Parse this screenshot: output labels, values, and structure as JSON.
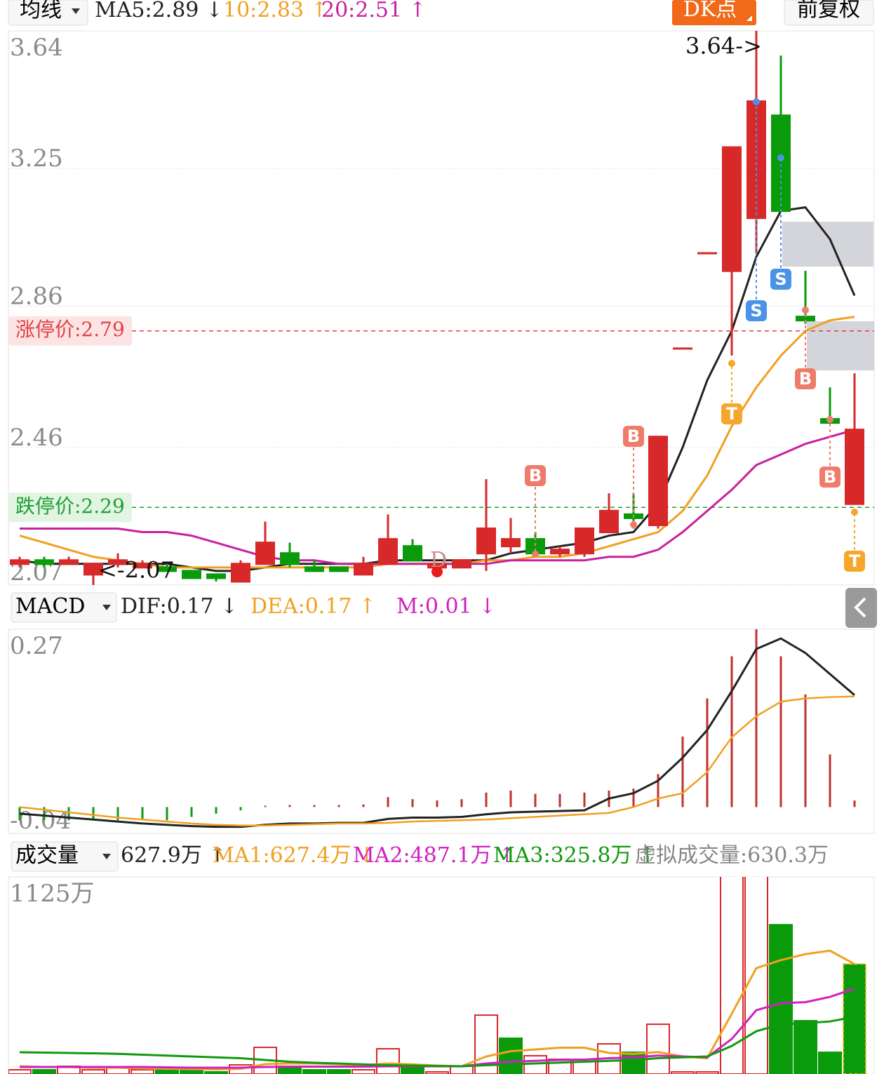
{
  "chart_data": [
    {
      "type": "candlestick",
      "title": "均线",
      "legend": [
        "MA5:2.89 ↓",
        "10:2.83 ↑",
        "20:2.51 ↑"
      ],
      "buttons": [
        "DK点",
        "前复权"
      ],
      "open": [
        2.13,
        2.14,
        2.13,
        2.1,
        2.13,
        2.12,
        2.12,
        2.11,
        2.1,
        2.08,
        2.13,
        2.16,
        2.12,
        2.12,
        2.1,
        2.13,
        2.18,
        2.12,
        2.12,
        2.16,
        2.18,
        2.2,
        2.16,
        2.16,
        2.22,
        2.27,
        2.24,
        2.74,
        3.01,
        2.96,
        3.11,
        3.4,
        2.83,
        2.54,
        2.3
      ],
      "high": [
        2.15,
        2.15,
        2.15,
        2.13,
        2.16,
        2.14,
        2.13,
        2.11,
        2.1,
        2.14,
        2.25,
        2.19,
        2.14,
        2.12,
        2.15,
        2.27,
        2.2,
        2.13,
        2.14,
        2.37,
        2.26,
        2.22,
        2.18,
        2.23,
        2.33,
        2.33,
        2.49,
        2.74,
        3.01,
        3.31,
        3.64,
        3.57,
        2.96,
        2.63,
        2.67
      ],
      "low": [
        2.12,
        2.12,
        2.13,
        2.07,
        2.12,
        2.12,
        2.11,
        2.09,
        2.08,
        2.08,
        2.13,
        2.12,
        2.11,
        2.11,
        2.1,
        2.13,
        2.14,
        2.12,
        2.12,
        2.11,
        2.16,
        2.15,
        2.15,
        2.15,
        2.22,
        2.23,
        2.23,
        2.74,
        3.01,
        2.72,
        3.01,
        3.13,
        2.81,
        2.53,
        2.3
      ],
      "close": [
        2.14,
        2.13,
        2.14,
        2.13,
        2.14,
        2.13,
        2.11,
        2.09,
        2.09,
        2.13,
        2.19,
        2.13,
        2.11,
        2.11,
        2.13,
        2.2,
        2.14,
        2.13,
        2.14,
        2.23,
        2.2,
        2.16,
        2.17,
        2.23,
        2.28,
        2.26,
        2.49,
        2.74,
        3.01,
        3.31,
        3.44,
        3.13,
        2.82,
        2.53,
        2.51
      ],
      "up_color": "#d7282a",
      "down_color": "#0a9b0a",
      "series": [
        {
          "color": "#222222",
          "values": [
            2.14,
            2.13,
            2.13,
            2.13,
            2.13,
            2.13,
            2.13,
            2.12,
            2.11,
            2.11,
            2.12,
            2.13,
            2.13,
            2.13,
            2.13,
            2.14,
            2.14,
            2.14,
            2.14,
            2.14,
            2.16,
            2.17,
            2.18,
            2.19,
            2.21,
            2.22,
            2.3,
            2.46,
            2.65,
            2.79,
            3.0,
            3.13,
            3.14,
            3.05,
            2.89
          ]
        },
        {
          "color": "#f0a020",
          "values": [
            2.21,
            2.19,
            2.17,
            2.15,
            2.14,
            2.13,
            2.12,
            2.12,
            2.12,
            2.12,
            2.12,
            2.12,
            2.12,
            2.12,
            2.12,
            2.13,
            2.13,
            2.13,
            2.13,
            2.14,
            2.14,
            2.15,
            2.15,
            2.16,
            2.18,
            2.2,
            2.22,
            2.28,
            2.38,
            2.52,
            2.63,
            2.72,
            2.79,
            2.82,
            2.83
          ]
        },
        {
          "color": "#c8209f",
          "values": [
            2.23,
            2.23,
            2.23,
            2.23,
            2.23,
            2.22,
            2.22,
            2.21,
            2.19,
            2.17,
            2.15,
            2.14,
            2.14,
            2.13,
            2.13,
            2.13,
            2.13,
            2.13,
            2.13,
            2.13,
            2.14,
            2.14,
            2.14,
            2.14,
            2.15,
            2.15,
            2.17,
            2.22,
            2.28,
            2.34,
            2.41,
            2.44,
            2.47,
            2.49,
            2.51
          ]
        }
      ],
      "ylim": [
        2.07,
        3.64
      ],
      "yticks": [
        3.64,
        3.25,
        2.86,
        2.46,
        2.07
      ],
      "grid": true,
      "limit_up": {
        "label": "涨停价:2.79",
        "value": 2.79,
        "color": "#e04040"
      },
      "limit_down": {
        "label": "跌停价:2.29",
        "value": 2.29,
        "color": "#20a030"
      },
      "annotations": [
        "3.64->",
        "<-2.07"
      ],
      "signals": [
        "B",
        "B",
        "S",
        "S",
        "B",
        "B",
        "T",
        "T",
        "D"
      ]
    },
    {
      "type": "macd",
      "title": "MACD",
      "legend": [
        "DIF:0.17 ↓",
        "DEA:0.17 ↑",
        "M:0.01 ↓"
      ],
      "legend_colors": [
        "#222222",
        "#f0a020",
        "#d020c0"
      ],
      "values": [
        -0.02,
        -0.02,
        -0.02,
        -0.02,
        -0.02,
        -0.02,
        -0.02,
        -0.015,
        -0.01,
        -0.005,
        0.002,
        0.003,
        0.003,
        0.003,
        0.004,
        0.015,
        0.012,
        0.01,
        0.012,
        0.022,
        0.025,
        0.02,
        0.02,
        0.022,
        0.025,
        0.028,
        0.05,
        0.107,
        0.165,
        0.229,
        0.27,
        0.229,
        0.171,
        0.08,
        0.01
      ],
      "up_color": "#c03030",
      "down_color": "#109a10",
      "series": [
        {
          "color": "#222222",
          "values": [
            -0.01,
            -0.013,
            -0.016,
            -0.019,
            -0.022,
            -0.025,
            -0.027,
            -0.029,
            -0.03,
            -0.03,
            -0.027,
            -0.025,
            -0.025,
            -0.024,
            -0.024,
            -0.018,
            -0.016,
            -0.016,
            -0.015,
            -0.011,
            -0.008,
            -0.007,
            -0.006,
            -0.005,
            0.013,
            0.021,
            0.04,
            0.075,
            0.117,
            0.176,
            0.24,
            0.256,
            0.234,
            0.202,
            0.17
          ]
        },
        {
          "color": "#f0a020",
          "values": [
            0,
            -0.004,
            -0.008,
            -0.012,
            -0.016,
            -0.019,
            -0.022,
            -0.025,
            -0.027,
            -0.028,
            -0.028,
            -0.027,
            -0.026,
            -0.025,
            -0.025,
            -0.024,
            -0.022,
            -0.021,
            -0.02,
            -0.019,
            -0.017,
            -0.015,
            -0.013,
            -0.011,
            -0.009,
            0,
            0.013,
            0.021,
            0.053,
            0.106,
            0.138,
            0.16,
            0.165,
            0.167,
            0.168
          ]
        }
      ],
      "ylim": [
        -0.04,
        0.27
      ],
      "yticks": [
        0.27,
        -0.04
      ]
    },
    {
      "type": "volume",
      "title": "成交量",
      "legend": [
        "627.9万 ↑",
        "MA1:627.4万 ↓",
        "MA2:487.1万 ↑",
        "MA3:325.8万 ↑",
        "虚拟成交量:630.3万"
      ],
      "legend_colors": [
        "#222222",
        "#f0a020",
        "#d020c0",
        "#109a10",
        "#888888"
      ],
      "values": [
        24,
        24,
        44,
        24,
        36,
        24,
        24,
        24,
        12,
        52,
        152,
        44,
        24,
        24,
        24,
        144,
        44,
        12,
        44,
        336,
        204,
        104,
        84,
        84,
        172,
        124,
        284,
        12,
        12,
        1300,
        1400,
        852,
        304,
        124,
        628
      ],
      "bar_colors": [
        "#d7282a",
        "#0a9b0a",
        "#d7282a",
        "#d7282a",
        "#d7282a",
        "#d7282a",
        "#0a9b0a",
        "#0a9b0a",
        "#0a9b0a",
        "#d7282a",
        "#d7282a",
        "#0a9b0a",
        "#0a9b0a",
        "#0a9b0a",
        "#d7282a",
        "#d7282a",
        "#0a9b0a",
        "#d7282a",
        "#d7282a",
        "#d7282a",
        "#0a9b0a",
        "#d7282a",
        "#d7282a",
        "#d7282a",
        "#d7282a",
        "#0a9b0a",
        "#d7282a",
        "#d7282a",
        "#d7282a",
        "#d7282a",
        "#d7282a",
        "#0a9b0a",
        "#0a9b0a",
        "#0a9b0a",
        "#0a9b0a"
      ],
      "series": [
        {
          "color": "#f0a020",
          "values": [
            44,
            40,
            40,
            36,
            36,
            32,
            30,
            28,
            26,
            30,
            56,
            60,
            60,
            56,
            50,
            60,
            55,
            48,
            44,
            100,
            130,
            140,
            150,
            150,
            120,
            115,
            125,
            100,
            90,
            344,
            604,
            650,
            684,
            704,
            627.4
          ]
        },
        {
          "color": "#d020c0",
          "values": [
            40,
            40,
            40,
            40,
            40,
            40,
            38,
            36,
            36,
            36,
            40,
            42,
            42,
            42,
            42,
            44,
            44,
            44,
            44,
            60,
            70,
            75,
            80,
            82,
            90,
            95,
            105,
            100,
            95,
            200,
            364,
            404,
            410,
            440,
            487.1
          ]
        },
        {
          "color": "#109a10",
          "values": [
            124,
            122,
            120,
            118,
            115,
            110,
            105,
            100,
            95,
            90,
            80,
            70,
            64,
            60,
            55,
            50,
            48,
            46,
            44,
            50,
            55,
            60,
            65,
            70,
            75,
            80,
            90,
            95,
            100,
            160,
            244,
            284,
            290,
            300,
            325.8
          ]
        }
      ],
      "ylim": [
        0,
        1125
      ],
      "yticks": [
        {
          "value": 1125,
          "label": "1125万"
        }
      ]
    }
  ]
}
